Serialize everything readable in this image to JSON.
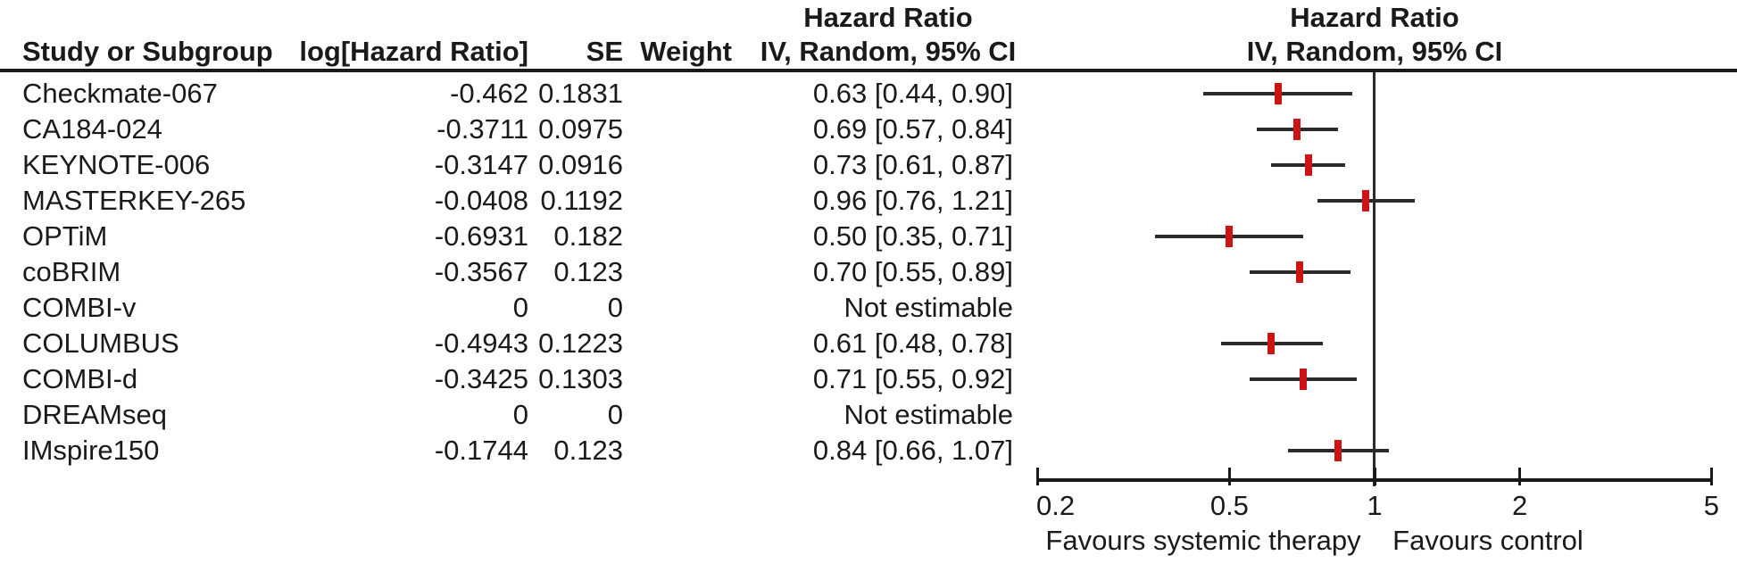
{
  "headers": {
    "study": "Study or Subgroup",
    "log_hr": "log[Hazard Ratio]",
    "se": "SE",
    "weight": "Weight",
    "stats_line1": "Hazard Ratio",
    "stats_line2": "IV, Random, 95% CI",
    "plot_line1": "Hazard Ratio",
    "plot_line2": "IV, Random, 95% CI"
  },
  "chart_data": {
    "type": "forest",
    "x_scale": "log",
    "x_ticks": [
      0.2,
      0.5,
      1,
      2,
      5
    ],
    "x_tick_labels": [
      "0.2",
      "0.5",
      "1",
      "2",
      "5"
    ],
    "x_range": [
      0.2,
      5
    ],
    "reference_value": 1,
    "footer_left": "Favours systemic therapy",
    "footer_right": "Favours control",
    "studies": [
      {
        "study": "Checkmate-067",
        "log_hr": "-0.462",
        "se": "0.1831",
        "weight": "",
        "ci_text": "0.63 [0.44, 0.90]",
        "hr": 0.63,
        "ci_low": 0.44,
        "ci_high": 0.9,
        "estimable": true
      },
      {
        "study": "CA184-024",
        "log_hr": "-0.3711",
        "se": "0.0975",
        "weight": "",
        "ci_text": "0.69 [0.57, 0.84]",
        "hr": 0.69,
        "ci_low": 0.57,
        "ci_high": 0.84,
        "estimable": true
      },
      {
        "study": "KEYNOTE-006",
        "log_hr": "-0.3147",
        "se": "0.0916",
        "weight": "",
        "ci_text": "0.73 [0.61, 0.87]",
        "hr": 0.73,
        "ci_low": 0.61,
        "ci_high": 0.87,
        "estimable": true
      },
      {
        "study": "MASTERKEY-265",
        "log_hr": "-0.0408",
        "se": "0.1192",
        "weight": "",
        "ci_text": "0.96 [0.76, 1.21]",
        "hr": 0.96,
        "ci_low": 0.76,
        "ci_high": 1.21,
        "estimable": true
      },
      {
        "study": "OPTiM",
        "log_hr": "-0.6931",
        "se": "0.182",
        "weight": "",
        "ci_text": "0.50 [0.35, 0.71]",
        "hr": 0.5,
        "ci_low": 0.35,
        "ci_high": 0.71,
        "estimable": true
      },
      {
        "study": "coBRIM",
        "log_hr": "-0.3567",
        "se": "0.123",
        "weight": "",
        "ci_text": "0.70 [0.55, 0.89]",
        "hr": 0.7,
        "ci_low": 0.55,
        "ci_high": 0.89,
        "estimable": true
      },
      {
        "study": "COMBI-v",
        "log_hr": "0",
        "se": "0",
        "weight": "",
        "ci_text": "Not estimable",
        "estimable": false
      },
      {
        "study": "COLUMBUS",
        "log_hr": "-0.4943",
        "se": "0.1223",
        "weight": "",
        "ci_text": "0.61 [0.48, 0.78]",
        "hr": 0.61,
        "ci_low": 0.48,
        "ci_high": 0.78,
        "estimable": true
      },
      {
        "study": "COMBI-d",
        "log_hr": "-0.3425",
        "se": "0.1303",
        "weight": "",
        "ci_text": "0.71 [0.55, 0.92]",
        "hr": 0.71,
        "ci_low": 0.55,
        "ci_high": 0.92,
        "estimable": true
      },
      {
        "study": "DREAMseq",
        "log_hr": "0",
        "se": "0",
        "weight": "",
        "ci_text": "Not estimable",
        "estimable": false
      },
      {
        "study": "IMspire150",
        "log_hr": "-0.1744",
        "se": "0.123",
        "weight": "",
        "ci_text": "0.84 [0.66, 1.07]",
        "hr": 0.84,
        "ci_low": 0.66,
        "ci_high": 1.07,
        "estimable": true
      }
    ]
  },
  "colors": {
    "marker_red": "#cc1414",
    "line_dark": "#2b2b2b",
    "axis_black": "#1a1a1a",
    "text": "#1a1a1a"
  }
}
